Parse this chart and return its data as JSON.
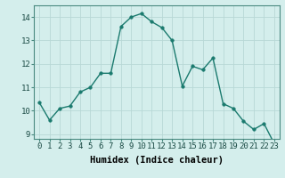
{
  "x": [
    0,
    1,
    2,
    3,
    4,
    5,
    6,
    7,
    8,
    9,
    10,
    11,
    12,
    13,
    14,
    15,
    16,
    17,
    18,
    19,
    20,
    21,
    22,
    23
  ],
  "y": [
    10.35,
    9.6,
    10.1,
    10.2,
    10.8,
    11.0,
    11.6,
    11.6,
    13.6,
    14.0,
    14.15,
    13.8,
    13.55,
    13.0,
    11.05,
    11.9,
    11.75,
    12.25,
    10.3,
    10.1,
    9.55,
    9.2,
    9.45,
    8.6
  ],
  "line_color": "#1a7a6e",
  "marker_color": "#1a7a6e",
  "bg_color": "#d4eeec",
  "grid_color_major": "#b8d8d6",
  "grid_color_minor": "#c8e4e2",
  "xlabel": "Humidex (Indice chaleur)",
  "xlim": [
    -0.5,
    23.5
  ],
  "ylim": [
    8.8,
    14.5
  ],
  "yticks": [
    9,
    10,
    11,
    12,
    13,
    14
  ],
  "xticks": [
    0,
    1,
    2,
    3,
    4,
    5,
    6,
    7,
    8,
    9,
    10,
    11,
    12,
    13,
    14,
    15,
    16,
    17,
    18,
    19,
    20,
    21,
    22,
    23
  ],
  "linewidth": 1.0,
  "markersize": 2.5,
  "xlabel_fontsize": 7.5,
  "tick_fontsize": 6.5
}
